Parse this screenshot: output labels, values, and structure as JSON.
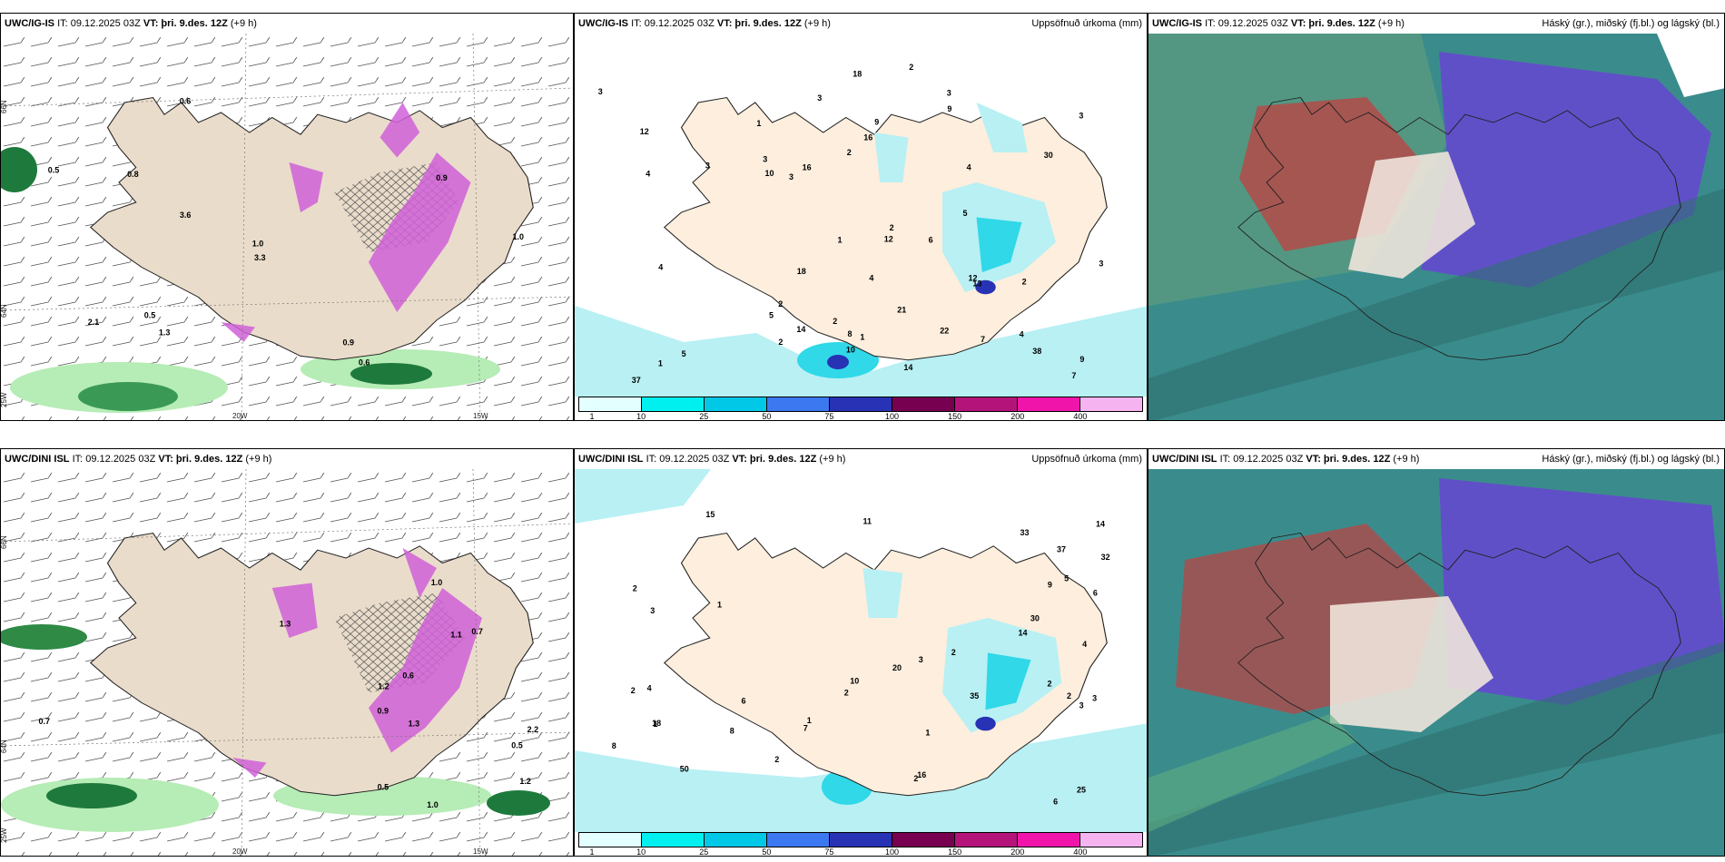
{
  "panels_top": {
    "wind": {
      "model": "UWC/IG-IS",
      "it": "IT: 09.12.2025 03Z",
      "vt_label": "VT:",
      "vt": "þri. 9.des. 12Z",
      "lead": "(+9 h)",
      "labels": [
        "0.6",
        "0.6",
        "0.5",
        "0.8",
        "0.9",
        "0.9",
        "1.0",
        "3.6",
        "3.3",
        "1.3",
        "2.1",
        "0.5",
        "1.0"
      ],
      "axis": {
        "lat1": "66N",
        "lat2": "64N",
        "lon1": "20W",
        "lon2": "15W",
        "lon3": "25W"
      }
    },
    "precip": {
      "model": "UWC/IG-IS",
      "it": "IT: 09.12.2025 03Z",
      "vt_label": "VT:",
      "vt": "þri. 9.des. 12Z",
      "lead": "(+9 h)",
      "title": "Uppsöfnuð úrkoma (mm)",
      "labels": [
        "1",
        "2",
        "2",
        "4",
        "3",
        "2",
        "4",
        "3",
        "7",
        "5",
        "7",
        "10",
        "14",
        "18",
        "22",
        "3",
        "12",
        "4",
        "1",
        "3",
        "3",
        "5",
        "10",
        "6",
        "13",
        "9",
        "16",
        "16",
        "30",
        "21",
        "38",
        "18",
        "9",
        "37",
        "12",
        "14",
        "8",
        "4",
        "4",
        "2",
        "3",
        "2",
        "1",
        "2",
        "5",
        "3",
        "2",
        "1",
        "3",
        "9",
        "12"
      ]
    },
    "cloud": {
      "model": "UWC/IG-IS",
      "it": "IT: 09.12.2025 03Z",
      "vt_label": "VT:",
      "vt": "þri. 9.des. 12Z",
      "lead": "(+9 h)",
      "title": "Háský (gr.), miðský (fj.bl.) og lágský (bl.)"
    }
  },
  "panels_bottom": {
    "wind": {
      "model": "UWC/DINI ISL",
      "it": "IT: 09.12.2025 03Z",
      "vt_label": "VT:",
      "vt": "þri. 9.des. 12Z",
      "lead": "(+9 h)",
      "labels": [
        "0.9",
        "2.2",
        "1.1",
        "0.5",
        "0.5",
        "1.0",
        "0.7",
        "1.3",
        "1.2",
        "1.0",
        "0.6",
        "1.2",
        "0.7",
        "1.3"
      ],
      "axis": {
        "lat1": "66N",
        "lat2": "64N",
        "lon1": "20W",
        "lon2": "15W",
        "lon3": "25W"
      }
    },
    "precip": {
      "model": "UWC/DINI ISL",
      "it": "IT: 09.12.2025 03Z",
      "vt_label": "VT:",
      "vt": "þri. 9.des. 12Z",
      "lead": "(+9 h)",
      "title": "Uppsöfnuð úrkoma (mm)",
      "labels": [
        "1",
        "1",
        "2",
        "2",
        "2",
        "4",
        "6",
        "6",
        "50",
        "15",
        "11",
        "8",
        "3",
        "6",
        "2",
        "2",
        "3",
        "2",
        "18",
        "30",
        "37",
        "33",
        "25",
        "35",
        "32",
        "20",
        "9",
        "5",
        "4",
        "2",
        "3",
        "14",
        "10",
        "1",
        "3",
        "2",
        "1",
        "8",
        "7",
        "14",
        "16"
      ]
    },
    "cloud": {
      "model": "UWC/DINI ISL",
      "it": "IT: 09.12.2025 03Z",
      "vt_label": "VT:",
      "vt": "þri. 9.des. 12Z",
      "lead": "(+9 h)",
      "title": "Háský (gr.), miðský (fj.bl.) og lágský (bl.)"
    }
  },
  "legend": {
    "ticks": [
      "1",
      "10",
      "25",
      "50",
      "75",
      "100",
      "150",
      "200",
      "400"
    ],
    "colors": [
      "#e4ffff",
      "#00f0f0",
      "#00c8e6",
      "#3c78f0",
      "#2832b4",
      "#780050",
      "#b4147a",
      "#f014aa",
      "#f5b4f0"
    ]
  },
  "colors": {
    "land": "#eadccb",
    "precip_land": "#fdeedd",
    "light_cyan": "#b8f0f4",
    "cyan": "#30d8e8",
    "green_light": "#b6ecb6",
    "green_dark": "#1e7a3c",
    "magenta": "#d060d8",
    "teal": "#3a8c8c",
    "purple": "#6050c8",
    "red": "#c04040"
  }
}
